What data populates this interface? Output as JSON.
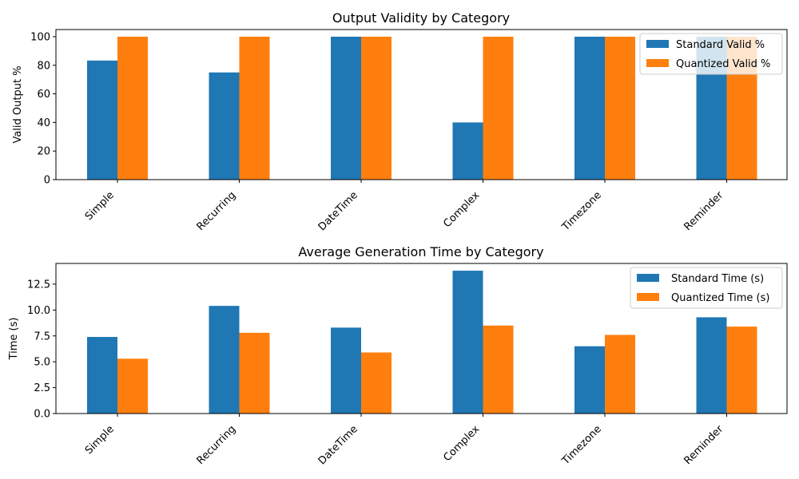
{
  "colors": {
    "standard": "#1f77b4",
    "quantized": "#ff7f0e"
  },
  "chart_data": [
    {
      "type": "bar",
      "title": "Output Validity by Category",
      "xlabel": "",
      "ylabel": "Valid Output %",
      "categories": [
        "Simple",
        "Recurring",
        "DateTime",
        "Complex",
        "Timezone",
        "Reminder"
      ],
      "series": [
        {
          "name": "Standard Valid %",
          "values": [
            83.3,
            75,
            100,
            40,
            100,
            100
          ]
        },
        {
          "name": "Quantized Valid %",
          "values": [
            100,
            100,
            100,
            100,
            100,
            100
          ]
        }
      ],
      "ylim": [
        0,
        105
      ],
      "yticks": [
        "0",
        "20",
        "40",
        "60",
        "80",
        "100"
      ],
      "legend": "upper right",
      "grid": false
    },
    {
      "type": "bar",
      "title": "Average Generation Time by Category",
      "xlabel": "",
      "ylabel": "Time (s)",
      "categories": [
        "Simple",
        "Recurring",
        "DateTime",
        "Complex",
        "Timezone",
        "Reminder"
      ],
      "series": [
        {
          "name": "Standard Time (s)",
          "values": [
            7.4,
            10.4,
            8.3,
            13.8,
            6.5,
            9.3
          ]
        },
        {
          "name": "Quantized Time (s)",
          "values": [
            5.3,
            7.8,
            5.9,
            8.5,
            7.6,
            8.4
          ]
        }
      ],
      "ylim": [
        0,
        14.5
      ],
      "yticks": [
        "0.0",
        "2.5",
        "5.0",
        "7.5",
        "10.0",
        "12.5"
      ],
      "legend": "upper right",
      "grid": false
    }
  ]
}
